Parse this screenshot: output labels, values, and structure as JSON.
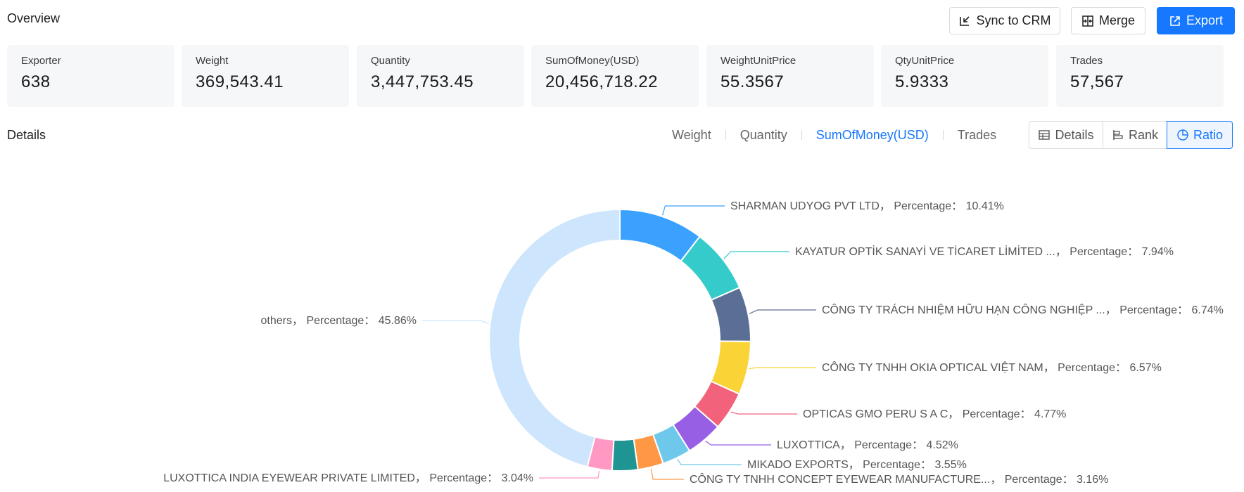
{
  "header": {
    "title": "Overview",
    "buttons": {
      "sync": "Sync to CRM",
      "merge": "Merge",
      "export": "Export"
    }
  },
  "stats": [
    {
      "label": "Exporter",
      "value": "638"
    },
    {
      "label": "Weight",
      "value": "369,543.41"
    },
    {
      "label": "Quantity",
      "value": "3,447,753.45"
    },
    {
      "label": "SumOfMoney(USD)",
      "value": "20,456,718.22"
    },
    {
      "label": "WeightUnitPrice",
      "value": "55.3567"
    },
    {
      "label": "QtyUnitPrice",
      "value": "5.9333"
    },
    {
      "label": "Trades",
      "value": "57,567"
    }
  ],
  "details": {
    "title": "Details",
    "metric_tabs": [
      "Weight",
      "Quantity",
      "SumOfMoney(USD)",
      "Trades"
    ],
    "active_metric": "SumOfMoney(USD)",
    "views": {
      "details": "Details",
      "rank": "Rank",
      "ratio": "Ratio"
    }
  },
  "chart_data": {
    "type": "pie",
    "donut": true,
    "label_prefix": "Percentage：",
    "slices": [
      {
        "name": "SHARMAN UDYOG PVT LTD",
        "value": 10.41,
        "label": "10.41%",
        "color": "#3aa1ff"
      },
      {
        "name": "KAYATUR OPTİK SANAYİ VE TİCARET LİMİTED ...",
        "value": 7.94,
        "label": "7.94%",
        "color": "#36cbcb"
      },
      {
        "name": "CÔNG TY TRÁCH NHIỆM HỮU HẠN CÔNG NGHIỆP ...",
        "value": 6.74,
        "label": "6.74%",
        "color": "#5b6e96"
      },
      {
        "name": "CÔNG TY TNHH OKIA OPTICAL VIỆT NAM",
        "value": 6.57,
        "label": "6.57%",
        "color": "#fad337"
      },
      {
        "name": "OPTICAS GMO PERU S A C",
        "value": 4.77,
        "label": "4.77%",
        "color": "#f2637b"
      },
      {
        "name": "LUXOTTICA",
        "value": 4.52,
        "label": "4.52%",
        "color": "#975fe4"
      },
      {
        "name": "MIKADO EXPORTS",
        "value": 3.55,
        "label": "3.55%",
        "color": "#6dc8ec"
      },
      {
        "name": "CÔNG TY TNHH CONCEPT EYEWEAR MANUFACTURE...",
        "value": 3.16,
        "label": "3.16%",
        "color": "#ff9845"
      },
      {
        "name": "",
        "value": 3.16,
        "label": "",
        "color": "#1e9493"
      },
      {
        "name": "LUXOTTICA INDIA EYEWEAR PRIVATE LIMITED",
        "value": 3.04,
        "label": "3.04%",
        "color": "#ff99c3"
      },
      {
        "name": "others",
        "value": 45.86,
        "label": "45.86%",
        "color": "#cde5fd"
      }
    ]
  }
}
